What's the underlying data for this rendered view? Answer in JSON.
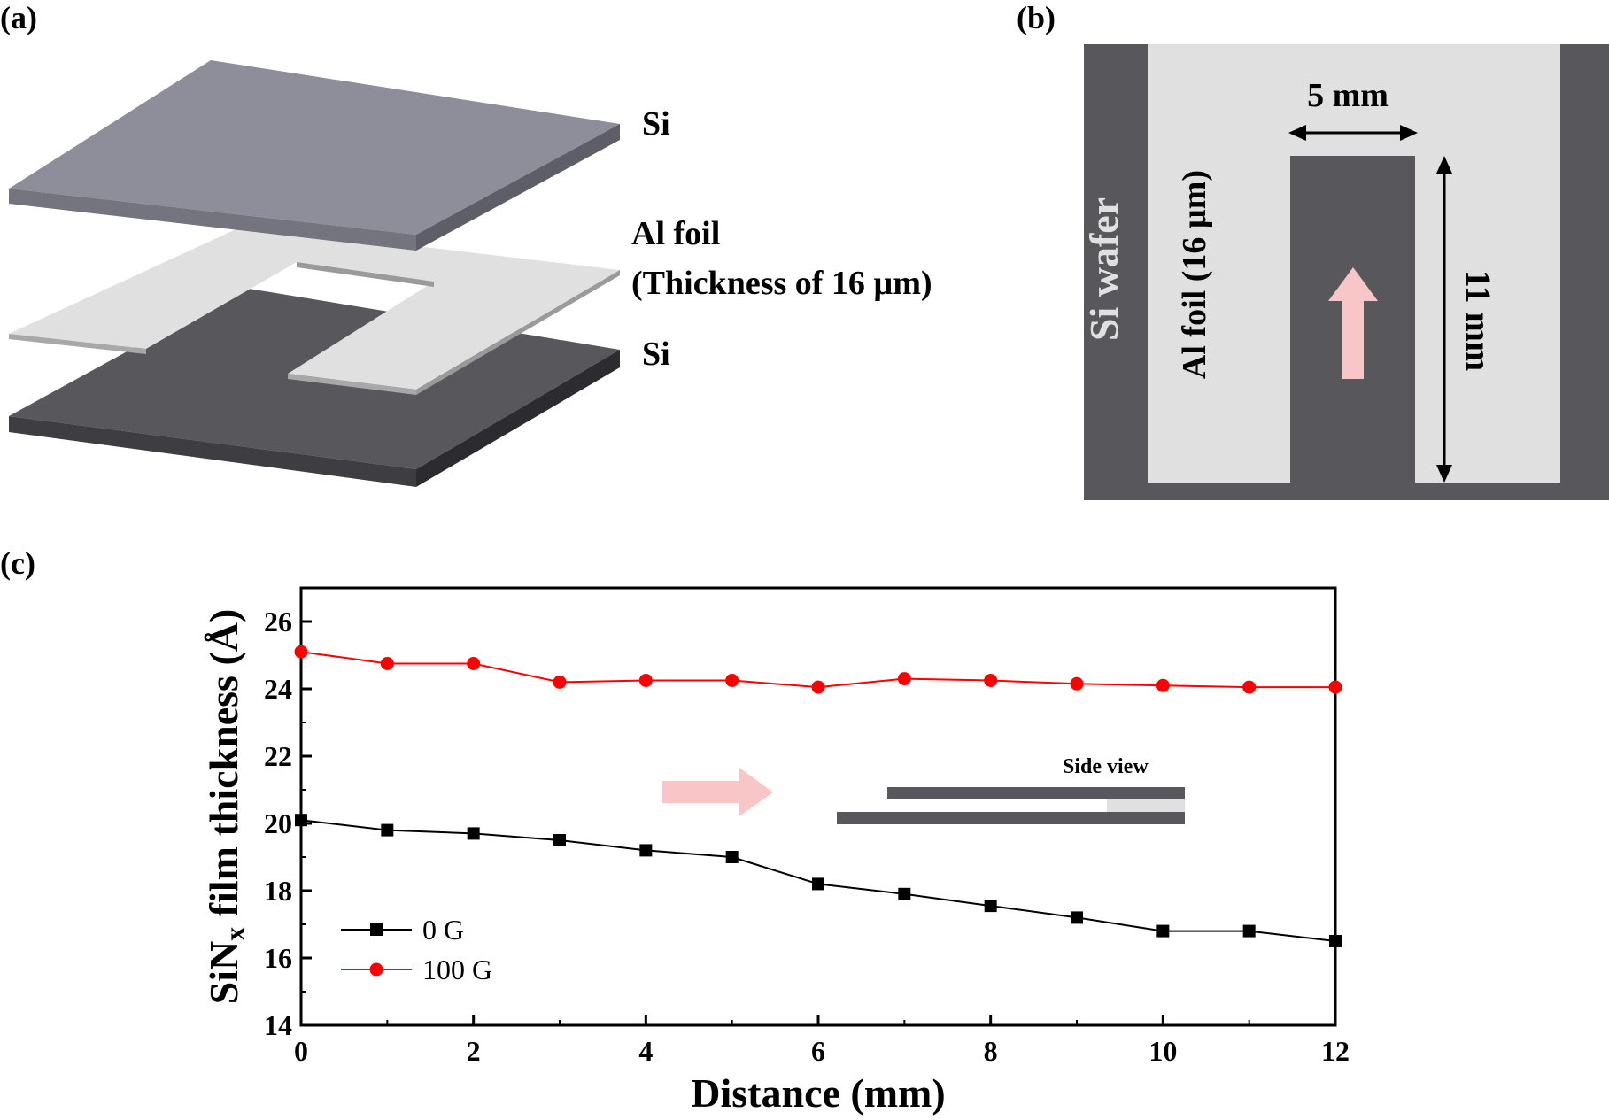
{
  "panels": {
    "a": {
      "label": "(a)",
      "layer_top_label": "Si",
      "foil_label_line1": "Al foil",
      "foil_label_line2": "(Thickness of 16 µm)",
      "layer_bottom_label": "Si",
      "colors": {
        "top_si": "#8e8e9b",
        "foil": "#e0e0e0",
        "bottom_si": "#58585c"
      }
    },
    "b": {
      "label": "(b)",
      "wafer_label": "Si wafer",
      "foil_label": "Al foil (16 µm)",
      "width_label": "5 mm",
      "height_label": "11 mm",
      "colors": {
        "wafer": "#58585c",
        "foil": "#e0e0e0",
        "arrow": "#f8c6c6"
      }
    },
    "c": {
      "label": "(c)",
      "inset_label": "Side view",
      "colors": {
        "arrow": "#f8c6c6",
        "inset_bar": "#58585c",
        "inset_foil": "#e0e0e0"
      }
    }
  },
  "chart_data": {
    "type": "line",
    "xlabel": "Distance (mm)",
    "ylabel_main": "SiN",
    "ylabel_sub": "x",
    "ylabel_rest": " film thickness (Å)",
    "xlim": [
      0,
      12
    ],
    "ylim": [
      14,
      27
    ],
    "xticks": [
      0,
      2,
      4,
      6,
      8,
      10,
      12
    ],
    "yticks": [
      14,
      16,
      18,
      20,
      22,
      24,
      26
    ],
    "grid": false,
    "legend_position": "bottom-left",
    "x": [
      0,
      1,
      2,
      3,
      4,
      5,
      6,
      7,
      8,
      9,
      10,
      11,
      12
    ],
    "series": [
      {
        "name": "0 G",
        "marker": "square",
        "color": "#000000",
        "values": [
          20.1,
          19.8,
          19.7,
          19.5,
          19.2,
          19.0,
          18.2,
          17.9,
          17.55,
          17.2,
          16.8,
          16.8,
          16.5
        ]
      },
      {
        "name": "100 G",
        "marker": "circle",
        "color": "#ff0000",
        "values": [
          25.1,
          24.75,
          24.75,
          24.2,
          24.25,
          24.25,
          24.05,
          24.3,
          24.25,
          24.15,
          24.1,
          24.05,
          24.05
        ]
      }
    ]
  }
}
